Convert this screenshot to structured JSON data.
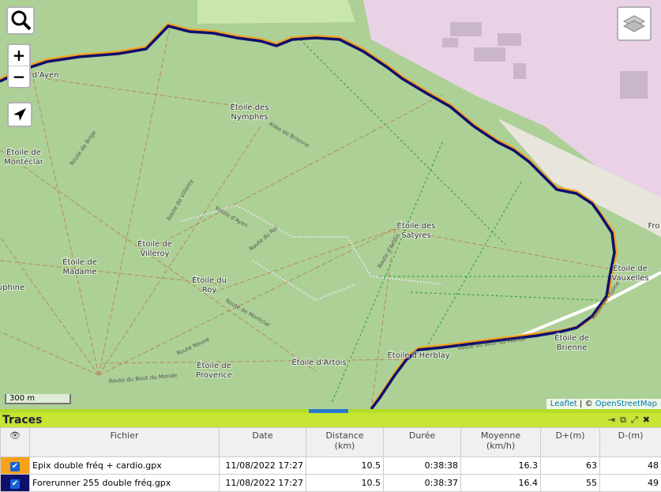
{
  "map": {
    "labels": [
      "Étoile d'Ayen",
      "Étoile des",
      "Nymphes",
      "Étoile de",
      "Montéclar",
      "Étoile de",
      "Madame",
      "Étoile de",
      "Villeroy",
      "Étoile du",
      "Roy",
      "Étoile des",
      "Satyres",
      "Étoile de",
      "Vauxelles",
      "Étoile de",
      "Brienne",
      "Étoile d'Herblay",
      "Étoile de",
      "Provence",
      "Étoile d'Artois",
      "uphine",
      "Fro"
    ],
    "roads": [
      "Allée de Brienne",
      "Route de Brige",
      "Route de Villeroy",
      "Route d'Ayen",
      "Route du Roi",
      "Route d'Artois",
      "Route de Montclar",
      "Route du Bout du Monde",
      "Route du Bout du Monde",
      "Route de l'Épine",
      "Route Neuve"
    ],
    "scale": "300 m",
    "attribution": {
      "leaflet": "Leaflet",
      "sep": "| ©",
      "osm": "OpenStreetMap"
    },
    "zoom_in": "+",
    "zoom_out": "−"
  },
  "panel": {
    "title": "Traces",
    "headers": [
      {
        "label": "Fichier"
      },
      {
        "label": "Date"
      },
      {
        "label": "Distance",
        "unit": "(km)"
      },
      {
        "label": "Durée"
      },
      {
        "label": "Moyenne",
        "unit": "(km/h)"
      },
      {
        "label": "D+(m)"
      },
      {
        "label": "D-(m)"
      }
    ],
    "rows": [
      [
        "Epix double fréq + cardio.gpx",
        "11/08/2022 17:27",
        10.5,
        "0:38:38",
        16.3,
        63,
        48
      ],
      [
        "Forerunner 255 double fréq.gpx",
        "11/08/2022 17:27",
        10.5,
        "0:38:37",
        16.4,
        55,
        49
      ]
    ]
  }
}
